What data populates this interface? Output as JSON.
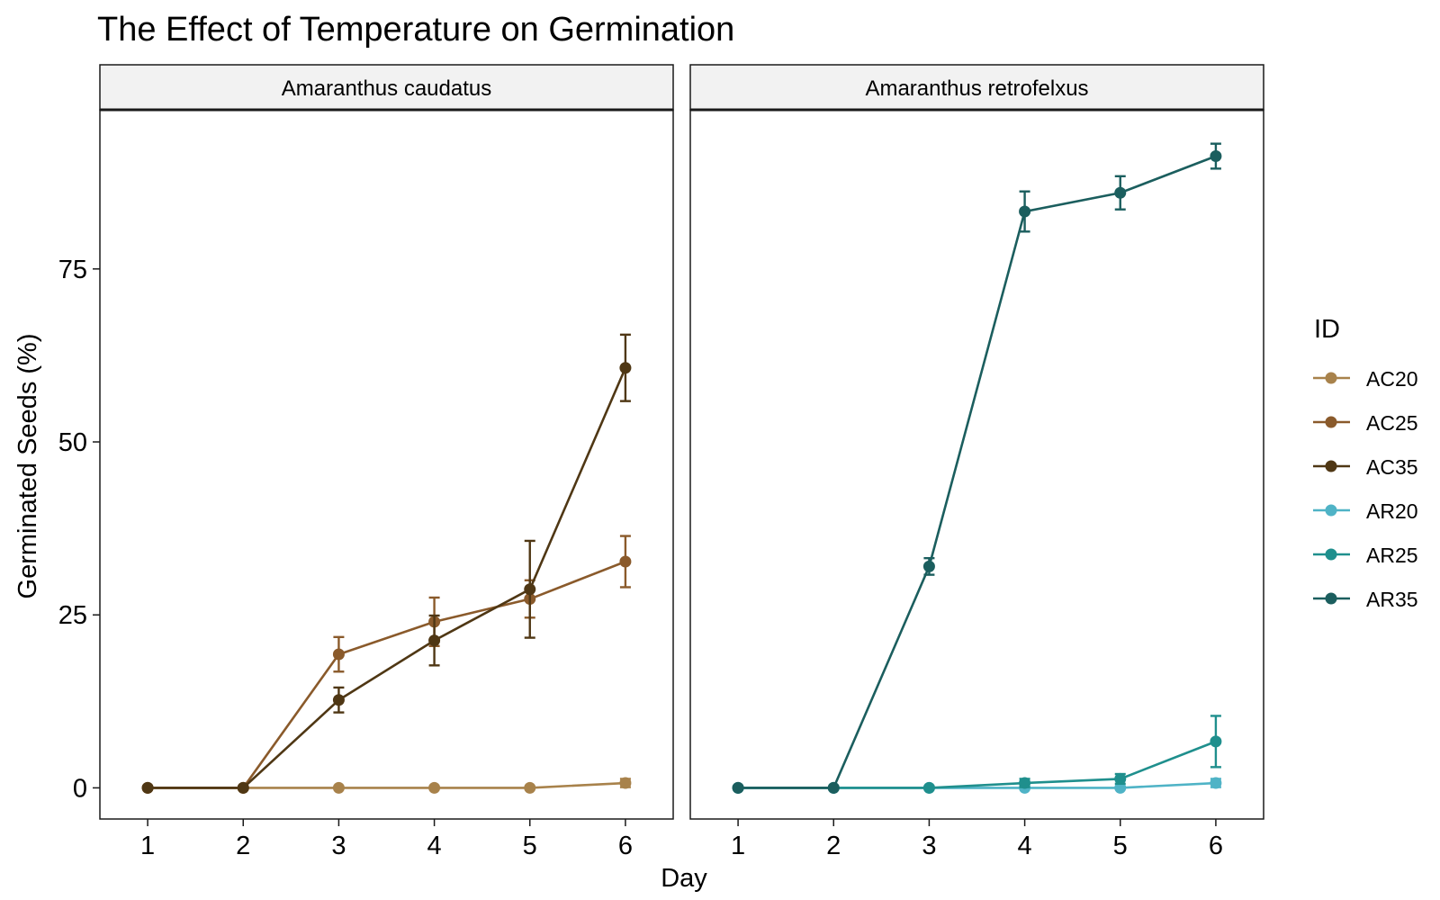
{
  "title": "The Effect of Temperature on Germination",
  "xlabel": "Day",
  "ylabel": "Germinated Seeds (%)",
  "legend": {
    "title": "ID",
    "position": "right",
    "items": [
      {
        "label": "AC20",
        "color": "#a8824b"
      },
      {
        "label": "AC25",
        "color": "#8a5a2b"
      },
      {
        "label": "AC35",
        "color": "#4f3714"
      },
      {
        "label": "AR20",
        "color": "#4fb3c6"
      },
      {
        "label": "AR25",
        "color": "#1f8f8d"
      },
      {
        "label": "AR35",
        "color": "#1b5e5e"
      }
    ]
  },
  "chart_data": [
    {
      "type": "line",
      "panel": "Amaranthus caudatus",
      "x": [
        1,
        2,
        3,
        4,
        5,
        6
      ],
      "xticks": [
        "1",
        "2",
        "3",
        "4",
        "5",
        "6"
      ],
      "xlim": [
        0.5,
        6.5
      ],
      "ylim": [
        -4.5,
        98
      ],
      "yticks": [
        0,
        25,
        50,
        75
      ],
      "grid": false,
      "series": [
        {
          "name": "AC20",
          "color": "#a8824b",
          "values": [
            0,
            0,
            0,
            0,
            0,
            0.7
          ],
          "err": [
            0,
            0,
            0,
            0,
            0,
            0.6
          ]
        },
        {
          "name": "AC25",
          "color": "#8a5a2b",
          "values": [
            0,
            0,
            19.3,
            24.0,
            27.3,
            32.7
          ],
          "err": [
            0,
            0,
            2.5,
            3.5,
            2.7,
            3.7
          ]
        },
        {
          "name": "AC35",
          "color": "#4f3714",
          "values": [
            0,
            0,
            12.7,
            21.3,
            28.7,
            60.7
          ],
          "err": [
            0,
            0,
            1.8,
            3.6,
            7.0,
            4.8
          ]
        }
      ]
    },
    {
      "type": "line",
      "panel": "Amaranthus retrofelxus",
      "x": [
        1,
        2,
        3,
        4,
        5,
        6
      ],
      "xticks": [
        "1",
        "2",
        "3",
        "4",
        "5",
        "6"
      ],
      "xlim": [
        0.5,
        6.5
      ],
      "ylim": [
        -4.5,
        98
      ],
      "yticks": [
        0,
        25,
        50,
        75
      ],
      "grid": false,
      "series": [
        {
          "name": "AR20",
          "color": "#4fb3c6",
          "values": [
            0,
            0,
            0,
            0,
            0,
            0.7
          ],
          "err": [
            0,
            0,
            0,
            0,
            0,
            0.6
          ]
        },
        {
          "name": "AR25",
          "color": "#1f8f8d",
          "values": [
            0,
            0,
            0,
            0.7,
            1.3,
            6.7
          ],
          "err": [
            0,
            0,
            0,
            0.6,
            0.7,
            3.7
          ]
        },
        {
          "name": "AR35",
          "color": "#1b5e5e",
          "values": [
            0,
            0,
            32.0,
            83.3,
            86.0,
            91.3
          ],
          "err": [
            0,
            0,
            1.2,
            2.9,
            2.4,
            1.8
          ]
        }
      ]
    }
  ]
}
